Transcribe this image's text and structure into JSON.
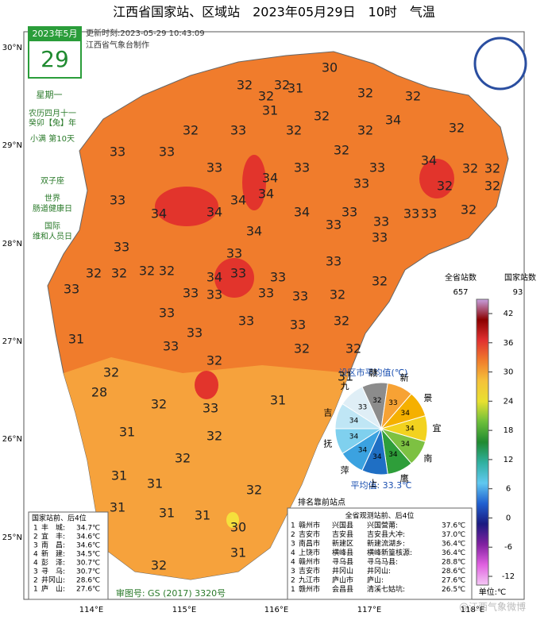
{
  "header": {
    "title": "江西省国家站、区域站　2023年05月29日　10时　气温",
    "update_time": "更新时刻:2023-05-29 10:43:09",
    "producer": "江西省气象台制作"
  },
  "calendar": {
    "month": "2023年5月",
    "day": "29",
    "weekday": "星期一",
    "lunar": "农历四月十一",
    "ganzhi": "癸卯【兔】年",
    "solar_term": "小满 第10天",
    "zodiac": "双子座",
    "events": [
      [
        "世界",
        "肠道健康日"
      ],
      [
        "国际",
        "维和人员日"
      ]
    ]
  },
  "map": {
    "lat_labels": [
      "30°N",
      "29°N",
      "28°N",
      "27°N",
      "26°N",
      "25°N"
    ],
    "lon_labels": [
      "114°E",
      "115°E",
      "116°E",
      "117°E",
      "118°E"
    ],
    "station_values": [
      30,
      32,
      32,
      32,
      31,
      31,
      32,
      32,
      32,
      32,
      33,
      32,
      32,
      34,
      32,
      33,
      33,
      32,
      33,
      33,
      34,
      33,
      34,
      32,
      32,
      33,
      32,
      32,
      33,
      34,
      34,
      34,
      34,
      34,
      33,
      33,
      33,
      33,
      32,
      34,
      33,
      33,
      33,
      32,
      32,
      32,
      32,
      33,
      34,
      33,
      33,
      33,
      32,
      33,
      33,
      33,
      33,
      33,
      32,
      33,
      33,
      33,
      33,
      32,
      31,
      33,
      32,
      32,
      32,
      32,
      31,
      28,
      32,
      33,
      31,
      31,
      32,
      31,
      32,
      31,
      31,
      32,
      31,
      31,
      31,
      30,
      31,
      32
    ],
    "map_review": "审图号: GS (2017) 3320号",
    "watermark": "@江西气象微博"
  },
  "legend": {
    "all_label": "全省站数",
    "all_count": "657",
    "national_label": "国家站数",
    "national_count": "93",
    "ticks": [
      42,
      36,
      30,
      24,
      18,
      12,
      6,
      0,
      -6,
      -12
    ],
    "unit": "单位:℃"
  },
  "pie": {
    "title": "设区市平均值(℃)",
    "cities": [
      "赣",
      "新",
      "景",
      "宜",
      "南",
      "鹰",
      "上",
      "萍",
      "抚",
      "吉",
      "九"
    ],
    "values": [
      32,
      33,
      34,
      34,
      34,
      34,
      34,
      34,
      34,
      34,
      33
    ],
    "colors": [
      "#8c8c8c",
      "#f7a234",
      "#f5b000",
      "#f2d21f",
      "#7dc142",
      "#2e9e3a",
      "#1f6fc4",
      "#3ba2e0",
      "#7fd0ee",
      "#bfe6f5",
      "#dfeef6"
    ],
    "average": "平均值: 33.3℃"
  },
  "ranking_note": "排名靠前站点",
  "national_rank": {
    "title": "国家站前、后4位",
    "rows": [
      [
        "1",
        "丰　城:",
        "34.7℃"
      ],
      [
        "2",
        "宜　丰:",
        "34.6℃"
      ],
      [
        "3",
        "南　昌:",
        "34.6℃"
      ],
      [
        "4",
        "新　建:",
        "34.5℃"
      ],
      [
        "4",
        "彭　泽:",
        "30.7℃"
      ],
      [
        "3",
        "寻　乌:",
        "30.7℃"
      ],
      [
        "2",
        "井冈山:",
        "28.6℃"
      ],
      [
        "1",
        "庐　山:",
        "27.6℃"
      ]
    ]
  },
  "all_rank": {
    "title": "全省观测站前、后4位",
    "rows": [
      [
        "1",
        "赣州市",
        "兴国县",
        "兴国營莆:",
        "37.6℃"
      ],
      [
        "2",
        "吉安市",
        "吉安县",
        "吉安县大冲:",
        "37.0℃"
      ],
      [
        "3",
        "南昌市",
        "新建区",
        "新建流湖乡:",
        "36.4℃"
      ],
      [
        "4",
        "上饶市",
        "横峰县",
        "横峰新篁核源:",
        "36.4℃"
      ],
      [
        "4",
        "赣州市",
        "寻乌县",
        "寻乌马县:",
        "28.8℃"
      ],
      [
        "3",
        "吉安市",
        "井冈山",
        "井冈山:",
        "28.6℃"
      ],
      [
        "2",
        "九江市",
        "庐山市",
        "庐山:",
        "27.6℃"
      ],
      [
        "1",
        "赣州市",
        "会昌县",
        "清溪七姑坑:",
        "26.5℃"
      ]
    ]
  }
}
